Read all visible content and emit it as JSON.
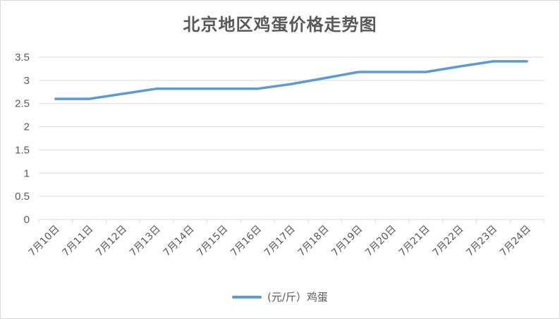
{
  "chart_data": {
    "type": "line",
    "title": "北京地区鸡蛋价格走势图",
    "categories": [
      "7月10日",
      "7月11日",
      "7月12日",
      "7月13日",
      "7月14日",
      "7月15日",
      "7月16日",
      "7月17日",
      "7月18日",
      "7月19日",
      "7月20日",
      "7月21日",
      "7月22日",
      "7月23日",
      "7月24日"
    ],
    "series": [
      {
        "name": "(元/斤）鸡蛋",
        "values": [
          2.6,
          2.6,
          2.71,
          2.82,
          2.82,
          2.82,
          2.82,
          2.92,
          3.05,
          3.18,
          3.18,
          3.18,
          3.3,
          3.41,
          3.41
        ],
        "color": "#5b9bd5"
      }
    ],
    "yticks": [
      "0",
      "0.5",
      "1",
      "1.5",
      "2",
      "2.5",
      "3",
      "3.5"
    ],
    "ylim": [
      0,
      3.5
    ],
    "grid": true,
    "legend_position": "bottom"
  }
}
